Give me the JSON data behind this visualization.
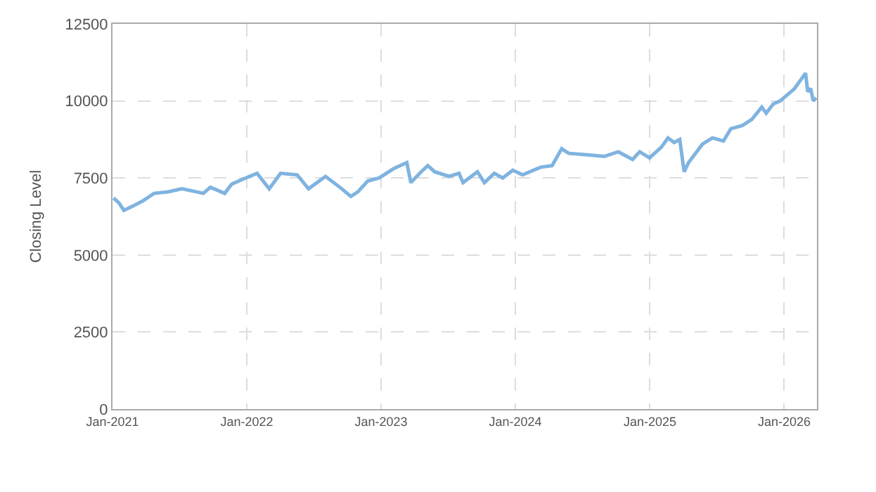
{
  "chart_data": {
    "type": "line",
    "ylabel": "Closing Level",
    "x": [
      "2021-01-04",
      "2021-01-18",
      "2021-02-01",
      "2021-02-27",
      "2021-03-24",
      "2021-04-24",
      "2021-06-01",
      "2021-07-09",
      "2021-08-17",
      "2021-09-05",
      "2021-09-24",
      "2021-11-02",
      "2021-11-21",
      "2021-12-29",
      "2022-01-29",
      "2022-03-03",
      "2022-04-03",
      "2022-05-18",
      "2022-06-18",
      "2022-08-03",
      "2022-09-11",
      "2022-10-11",
      "2022-10-30",
      "2022-11-26",
      "2022-12-27",
      "2023-02-04",
      "2023-03-12",
      "2023-03-23",
      "2023-04-20",
      "2023-05-08",
      "2023-05-27",
      "2023-07-05",
      "2023-08-01",
      "2023-08-12",
      "2023-09-20",
      "2023-10-09",
      "2023-11-05",
      "2023-11-28",
      "2023-12-25",
      "2024-01-21",
      "2024-03-10",
      "2024-04-10",
      "2024-05-06",
      "2024-05-25",
      "2024-07-14",
      "2024-08-30",
      "2024-10-07",
      "2024-11-15",
      "2024-12-04",
      "2024-12-31",
      "2025-02-01",
      "2025-02-19",
      "2025-03-08",
      "2025-03-23",
      "2025-04-04",
      "2025-04-16",
      "2025-05-24",
      "2025-06-20",
      "2025-07-20",
      "2025-08-09",
      "2025-09-09",
      "2025-10-05",
      "2025-11-01",
      "2025-11-13",
      "2025-12-02",
      "2025-12-21",
      "2026-01-29",
      "2026-02-28",
      "2026-03-06",
      "2026-03-14",
      "2026-03-21",
      "2026-03-29"
    ],
    "series": [
      {
        "color": "#7fb3e0",
        "values": [
          6850,
          6700,
          6450,
          6600,
          6750,
          7000,
          7050,
          7150,
          7050,
          7000,
          7200,
          7000,
          7300,
          7500,
          7650,
          7150,
          7650,
          7600,
          7150,
          7550,
          7200,
          6900,
          7050,
          7400,
          7500,
          7800,
          8000,
          7350,
          7700,
          7900,
          7700,
          7550,
          7650,
          7350,
          7700,
          7350,
          7650,
          7500,
          7750,
          7600,
          7850,
          7900,
          8450,
          8300,
          8250,
          8200,
          8350,
          8100,
          8350,
          8150,
          8500,
          8800,
          8650,
          8750,
          7700,
          8000,
          8600,
          8800,
          8700,
          9100,
          9200,
          9400,
          9800,
          9600,
          9900,
          10000,
          10400,
          10900,
          10300,
          10400,
          10000,
          10100
        ]
      }
    ],
    "xlim": [
      "2021-01-01",
      "2026-03-31"
    ],
    "xticks": [
      {
        "value": "2021-01-01",
        "label": "Jan-2021"
      },
      {
        "value": "2022-01-01",
        "label": "Jan-2022"
      },
      {
        "value": "2023-01-01",
        "label": "Jan-2023"
      },
      {
        "value": "2024-01-01",
        "label": "Jan-2024"
      },
      {
        "value": "2025-01-01",
        "label": "Jan-2025"
      },
      {
        "value": "2026-01-01",
        "label": "Jan-2026"
      }
    ],
    "ylim": [
      0,
      12500
    ],
    "yticks": [
      0,
      2500,
      5000,
      7500,
      10000,
      12500
    ],
    "grid": true,
    "marker": "none",
    "line_style": "solid"
  }
}
